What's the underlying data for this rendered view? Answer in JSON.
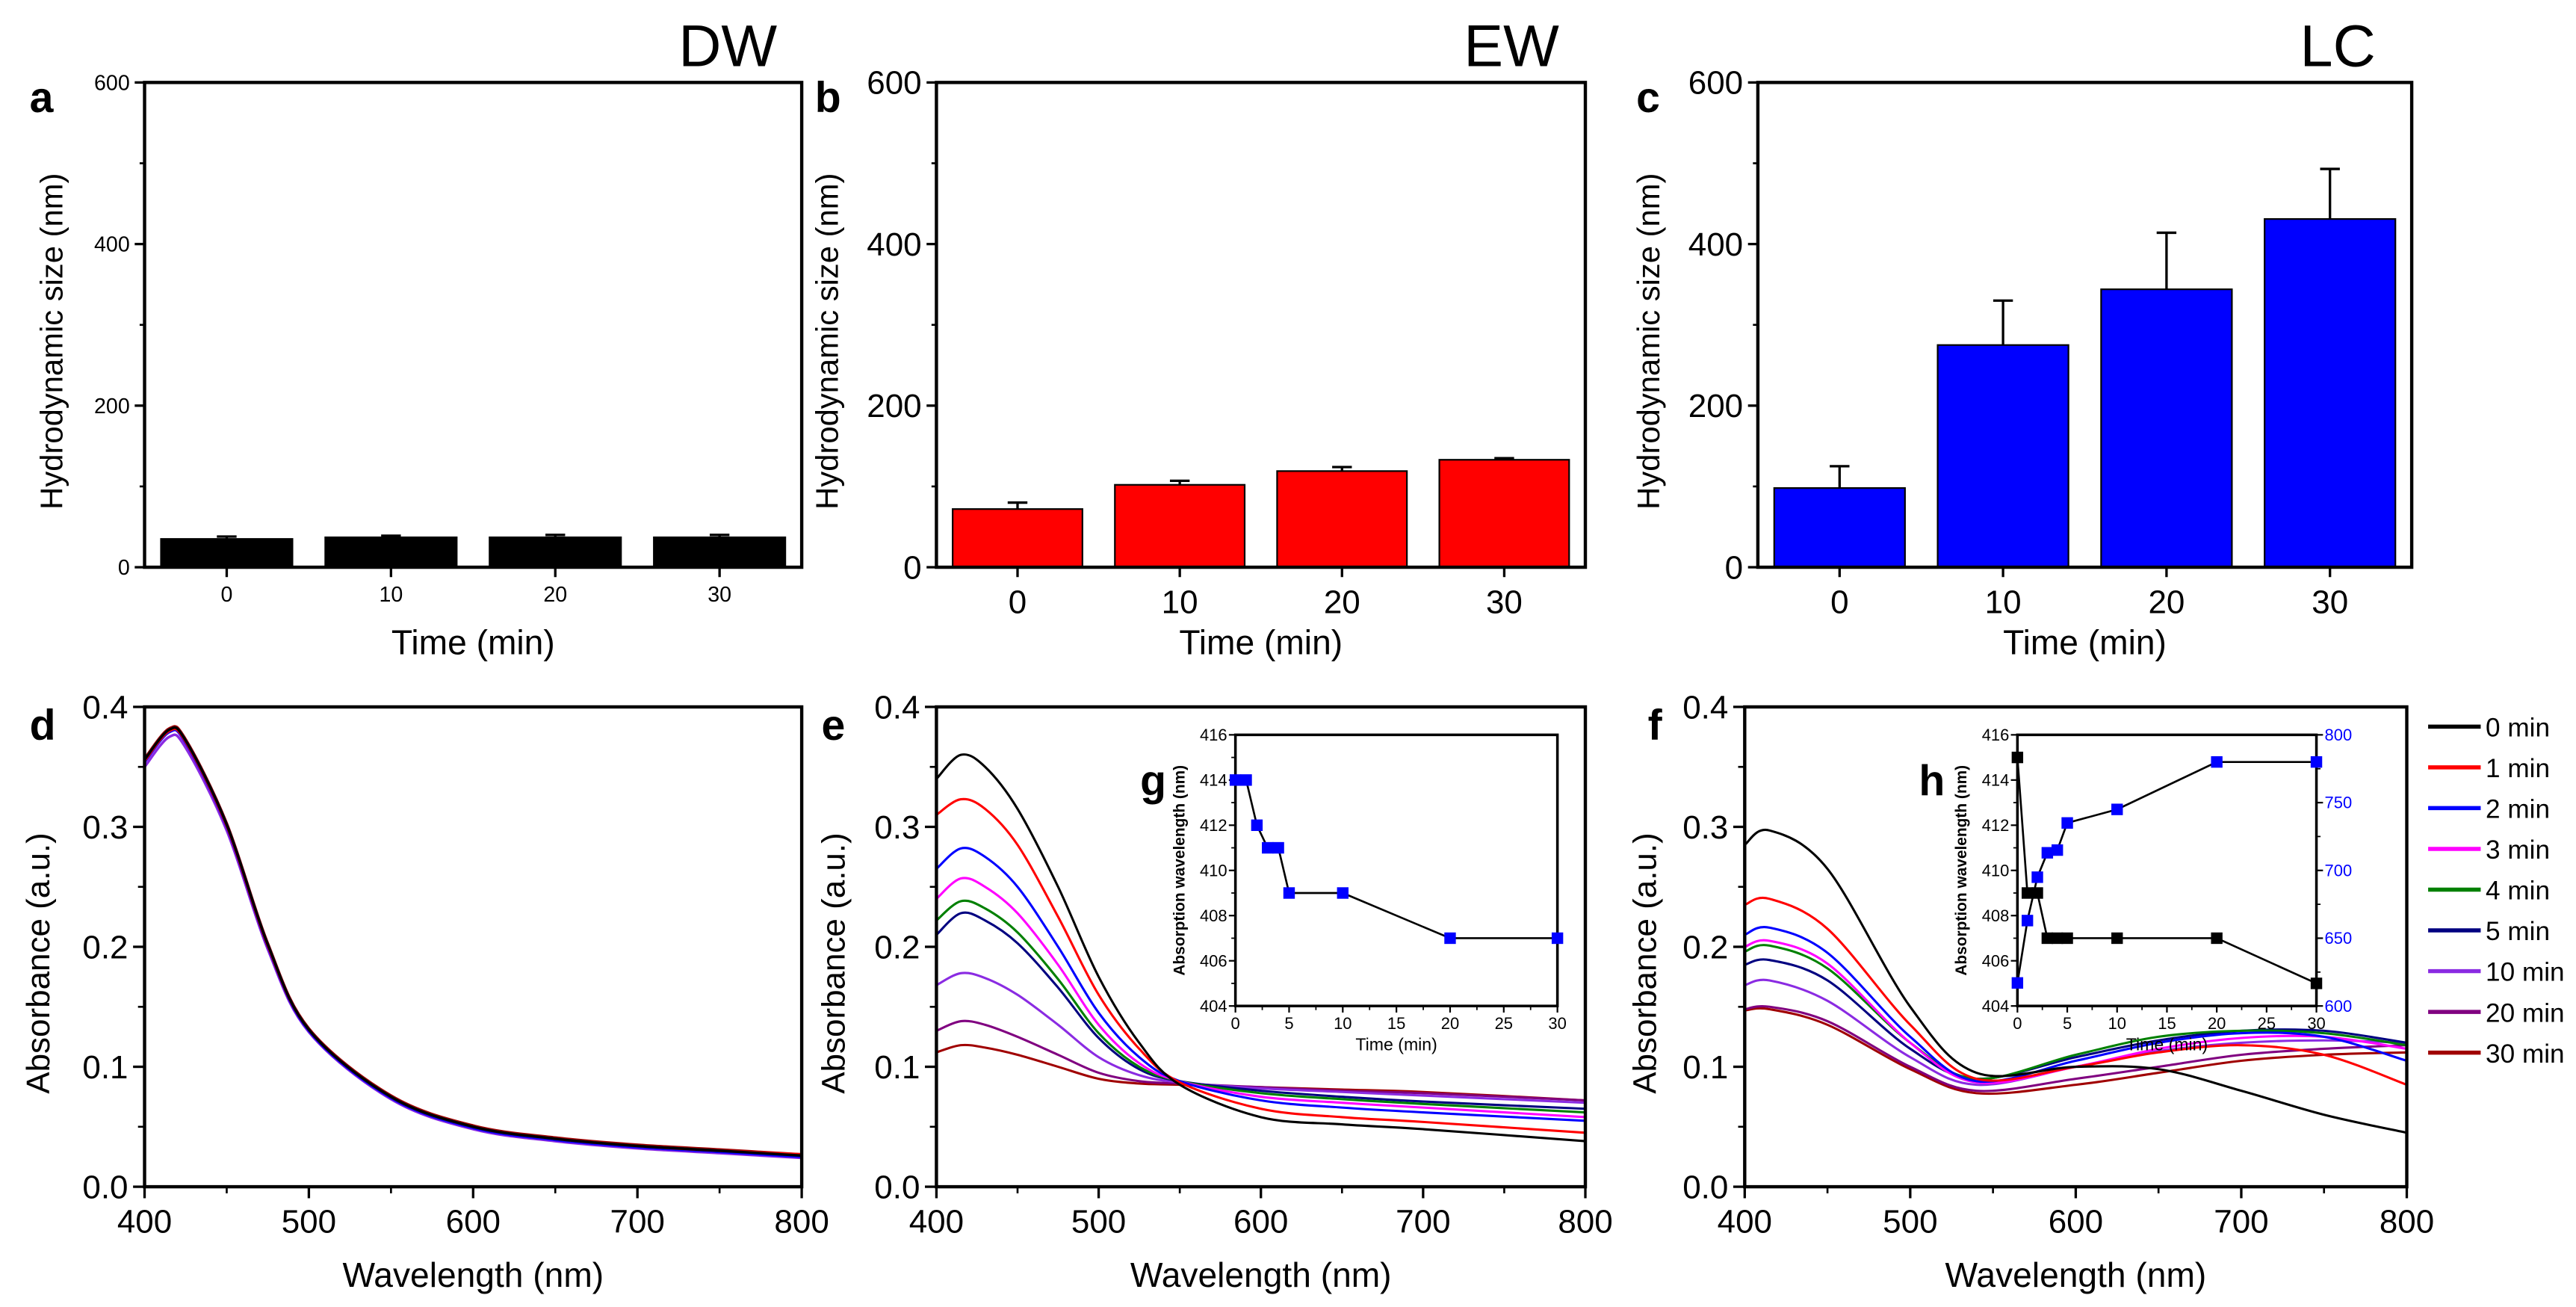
{
  "chart_data": [
    {
      "panel": "a",
      "type": "bar",
      "title": "DW",
      "xlabel": "Time (min)",
      "ylabel": "Hydrodynamic size (nm)",
      "categories": [
        "0",
        "10",
        "20",
        "30"
      ],
      "values": [
        35,
        37,
        37,
        37
      ],
      "errors": [
        3,
        2,
        3,
        3
      ],
      "ylim": [
        0,
        600
      ],
      "yticks": [
        "0",
        "200",
        "400",
        "600"
      ],
      "color": "#000000"
    },
    {
      "panel": "b",
      "type": "bar",
      "title": "EW",
      "xlabel": "Time (min)",
      "ylabel": "Hydrodynamic size (nm)",
      "categories": [
        "0",
        "10",
        "20",
        "30"
      ],
      "values": [
        72,
        102,
        119,
        133
      ],
      "errors": [
        8,
        5,
        5,
        2
      ],
      "ylim": [
        0,
        600
      ],
      "yticks": [
        "0",
        "200",
        "400",
        "600"
      ],
      "color": "#ff0000"
    },
    {
      "panel": "c",
      "type": "bar",
      "title": "LC",
      "xlabel": "Time (min)",
      "ylabel": "Hydrodynamic size (nm)",
      "categories": [
        "0",
        "10",
        "20",
        "30"
      ],
      "values": [
        98,
        275,
        344,
        431
      ],
      "errors": [
        27,
        55,
        70,
        62
      ],
      "ylim": [
        0,
        600
      ],
      "yticks": [
        "0",
        "200",
        "400",
        "600"
      ],
      "color": "#0000ff"
    },
    {
      "panel": "d",
      "type": "line",
      "xlabel": "Wavelength (nm)",
      "ylabel": "Absorbance (a.u.)",
      "xlim": [
        400,
        800
      ],
      "ylim": [
        0,
        0.4
      ],
      "xticks": [
        "400",
        "500",
        "600",
        "700",
        "800"
      ],
      "yticks": [
        "0.0",
        "0.1",
        "0.2",
        "0.3",
        "0.4"
      ],
      "x": [
        400,
        415,
        425,
        450,
        475,
        500,
        550,
        600,
        650,
        700,
        750,
        800
      ],
      "series": [
        {
          "name": "0 min",
          "color": "#000000",
          "values": [
            0.356,
            0.381,
            0.372,
            0.302,
            0.202,
            0.131,
            0.075,
            0.05,
            0.04,
            0.034,
            0.03,
            0.026
          ]
        },
        {
          "name": "1 min",
          "color": "#ff0000",
          "values": [
            0.355,
            0.38,
            0.371,
            0.301,
            0.201,
            0.131,
            0.075,
            0.05,
            0.04,
            0.034,
            0.03,
            0.027
          ]
        },
        {
          "name": "2 min",
          "color": "#0000ff",
          "values": [
            0.354,
            0.379,
            0.37,
            0.3,
            0.2,
            0.13,
            0.074,
            0.049,
            0.039,
            0.033,
            0.029,
            0.025
          ]
        },
        {
          "name": "3 min",
          "color": "#ff00ff",
          "values": [
            0.354,
            0.379,
            0.37,
            0.3,
            0.2,
            0.13,
            0.074,
            0.049,
            0.039,
            0.033,
            0.029,
            0.025
          ]
        },
        {
          "name": "4 min",
          "color": "#008000",
          "values": [
            0.355,
            0.38,
            0.371,
            0.301,
            0.201,
            0.131,
            0.075,
            0.05,
            0.04,
            0.034,
            0.03,
            0.026
          ]
        },
        {
          "name": "5 min",
          "color": "#000080",
          "values": [
            0.355,
            0.38,
            0.371,
            0.301,
            0.201,
            0.131,
            0.075,
            0.05,
            0.04,
            0.034,
            0.03,
            0.026
          ]
        },
        {
          "name": "10 min",
          "color": "#8a2be2",
          "values": [
            0.35,
            0.375,
            0.366,
            0.297,
            0.198,
            0.129,
            0.073,
            0.048,
            0.038,
            0.032,
            0.028,
            0.024
          ]
        },
        {
          "name": "20 min",
          "color": "#800080",
          "values": [
            0.356,
            0.381,
            0.372,
            0.302,
            0.202,
            0.131,
            0.075,
            0.05,
            0.04,
            0.034,
            0.03,
            0.026
          ]
        },
        {
          "name": "30 min",
          "color": "#a00000",
          "values": [
            0.357,
            0.382,
            0.373,
            0.303,
            0.203,
            0.132,
            0.076,
            0.051,
            0.041,
            0.035,
            0.031,
            0.027
          ]
        }
      ]
    },
    {
      "panel": "e",
      "type": "line",
      "xlabel": "Wavelength (nm)",
      "ylabel": "Absorbance (a.u.)",
      "xlim": [
        400,
        800
      ],
      "ylim": [
        0,
        0.4
      ],
      "xticks": [
        "400",
        "500",
        "600",
        "700",
        "800"
      ],
      "yticks": [
        "0.0",
        "0.1",
        "0.2",
        "0.3",
        "0.4"
      ],
      "x": [
        400,
        415,
        430,
        450,
        475,
        500,
        525,
        550,
        600,
        650,
        700,
        800
      ],
      "series": [
        {
          "name": "0 min",
          "color": "#000000",
          "values": [
            0.34,
            0.36,
            0.35,
            0.315,
            0.25,
            0.175,
            0.12,
            0.085,
            0.058,
            0.052,
            0.048,
            0.038
          ]
        },
        {
          "name": "1 min",
          "color": "#ff0000",
          "values": [
            0.31,
            0.323,
            0.315,
            0.285,
            0.225,
            0.16,
            0.115,
            0.087,
            0.065,
            0.058,
            0.054,
            0.045
          ]
        },
        {
          "name": "2 min",
          "color": "#0000ff",
          "values": [
            0.265,
            0.282,
            0.275,
            0.25,
            0.2,
            0.145,
            0.108,
            0.088,
            0.072,
            0.066,
            0.062,
            0.055
          ]
        },
        {
          "name": "3 min",
          "color": "#ff00ff",
          "values": [
            0.24,
            0.257,
            0.25,
            0.228,
            0.185,
            0.135,
            0.103,
            0.088,
            0.075,
            0.07,
            0.066,
            0.058
          ]
        },
        {
          "name": "4 min",
          "color": "#008000",
          "values": [
            0.222,
            0.238,
            0.232,
            0.212,
            0.173,
            0.128,
            0.1,
            0.088,
            0.078,
            0.073,
            0.069,
            0.062
          ]
        },
        {
          "name": "5 min",
          "color": "#000080",
          "values": [
            0.21,
            0.228,
            0.222,
            0.203,
            0.166,
            0.124,
            0.098,
            0.088,
            0.08,
            0.075,
            0.071,
            0.065
          ]
        },
        {
          "name": "10 min",
          "color": "#8a2be2",
          "values": [
            0.168,
            0.178,
            0.174,
            0.16,
            0.135,
            0.108,
            0.093,
            0.087,
            0.082,
            0.079,
            0.076,
            0.07
          ]
        },
        {
          "name": "20 min",
          "color": "#800080",
          "values": [
            0.13,
            0.138,
            0.135,
            0.125,
            0.11,
            0.095,
            0.088,
            0.086,
            0.083,
            0.08,
            0.078,
            0.072
          ]
        },
        {
          "name": "30 min",
          "color": "#a00000",
          "values": [
            0.112,
            0.118,
            0.116,
            0.11,
            0.1,
            0.09,
            0.086,
            0.085,
            0.083,
            0.081,
            0.079,
            0.072
          ]
        }
      ],
      "inset": {
        "panel": "g",
        "xlabel": "Time (min)",
        "ylabel": "Absorption wavelength (nm)",
        "xlim": [
          0,
          30
        ],
        "ylim": [
          404,
          416
        ],
        "xticks": [
          "0",
          "5",
          "10",
          "15",
          "20",
          "25",
          "30"
        ],
        "yticks": [
          "404",
          "406",
          "408",
          "410",
          "412",
          "414",
          "416"
        ],
        "x": [
          0,
          1,
          2,
          3,
          4,
          5,
          10,
          20,
          30
        ],
        "series": [
          {
            "color": "#0000ff",
            "axis": "left",
            "values": [
              414,
              414,
              412,
              411,
              411,
              409,
              409,
              407,
              407
            ]
          }
        ]
      }
    },
    {
      "panel": "f",
      "type": "line",
      "xlabel": "Wavelength (nm)",
      "ylabel": "Absorbance (a.u.)",
      "xlim": [
        400,
        800
      ],
      "ylim": [
        0,
        0.4
      ],
      "xticks": [
        "400",
        "500",
        "600",
        "700",
        "800"
      ],
      "yticks": [
        "0.0",
        "0.1",
        "0.2",
        "0.3",
        "0.4"
      ],
      "x": [
        400,
        415,
        450,
        500,
        540,
        600,
        650,
        700,
        750,
        800
      ],
      "series": [
        {
          "name": "0 min",
          "color": "#000000",
          "values": [
            0.285,
            0.297,
            0.265,
            0.15,
            0.095,
            0.1,
            0.098,
            0.08,
            0.06,
            0.045
          ]
        },
        {
          "name": "1 min",
          "color": "#ff0000",
          "values": [
            0.235,
            0.24,
            0.215,
            0.135,
            0.09,
            0.1,
            0.112,
            0.118,
            0.11,
            0.085
          ]
        },
        {
          "name": "2 min",
          "color": "#0000ff",
          "values": [
            0.21,
            0.216,
            0.195,
            0.125,
            0.088,
            0.105,
            0.12,
            0.128,
            0.125,
            0.105
          ]
        },
        {
          "name": "3 min",
          "color": "#ff00ff",
          "values": [
            0.2,
            0.205,
            0.186,
            0.12,
            0.087,
            0.1,
            0.115,
            0.124,
            0.125,
            0.115
          ]
        },
        {
          "name": "4 min",
          "color": "#008000",
          "values": [
            0.196,
            0.201,
            0.182,
            0.12,
            0.09,
            0.11,
            0.125,
            0.13,
            0.128,
            0.118
          ]
        },
        {
          "name": "5 min",
          "color": "#000080",
          "values": [
            0.185,
            0.189,
            0.172,
            0.115,
            0.09,
            0.108,
            0.122,
            0.13,
            0.13,
            0.12
          ]
        },
        {
          "name": "10 min",
          "color": "#8a2be2",
          "values": [
            0.168,
            0.172,
            0.155,
            0.108,
            0.085,
            0.1,
            0.113,
            0.12,
            0.122,
            0.12
          ]
        },
        {
          "name": "20 min",
          "color": "#800080",
          "values": [
            0.148,
            0.15,
            0.138,
            0.1,
            0.08,
            0.09,
            0.1,
            0.11,
            0.115,
            0.118
          ]
        },
        {
          "name": "30 min",
          "color": "#a00000",
          "values": [
            0.147,
            0.148,
            0.135,
            0.098,
            0.078,
            0.085,
            0.095,
            0.105,
            0.11,
            0.112
          ]
        }
      ],
      "legend_position": "right",
      "inset": {
        "panel": "h",
        "xlabel": "Time (min)",
        "ylabel": "Absorption wavelength (nm)",
        "xlim": [
          0,
          30
        ],
        "ylim": [
          404,
          416
        ],
        "y2lim": [
          600,
          800
        ],
        "xticks": [
          "0",
          "5",
          "10",
          "15",
          "20",
          "25",
          "30"
        ],
        "yticks": [
          "404",
          "406",
          "408",
          "410",
          "412",
          "414",
          "416"
        ],
        "y2ticks": [
          "600",
          "650",
          "700",
          "750",
          "800"
        ],
        "y2color": "#0000ff",
        "x": [
          0,
          1,
          2,
          3,
          4,
          5,
          10,
          20,
          30
        ],
        "series": [
          {
            "color": "#000000",
            "axis": "left",
            "values": [
              415,
              409,
              409,
              407,
              407,
              407,
              407,
              407,
              405
            ]
          },
          {
            "color": "#0000ff",
            "axis": "right",
            "values": [
              617,
              663,
              695,
              713,
              715,
              735,
              745,
              780,
              780
            ]
          }
        ]
      }
    }
  ]
}
